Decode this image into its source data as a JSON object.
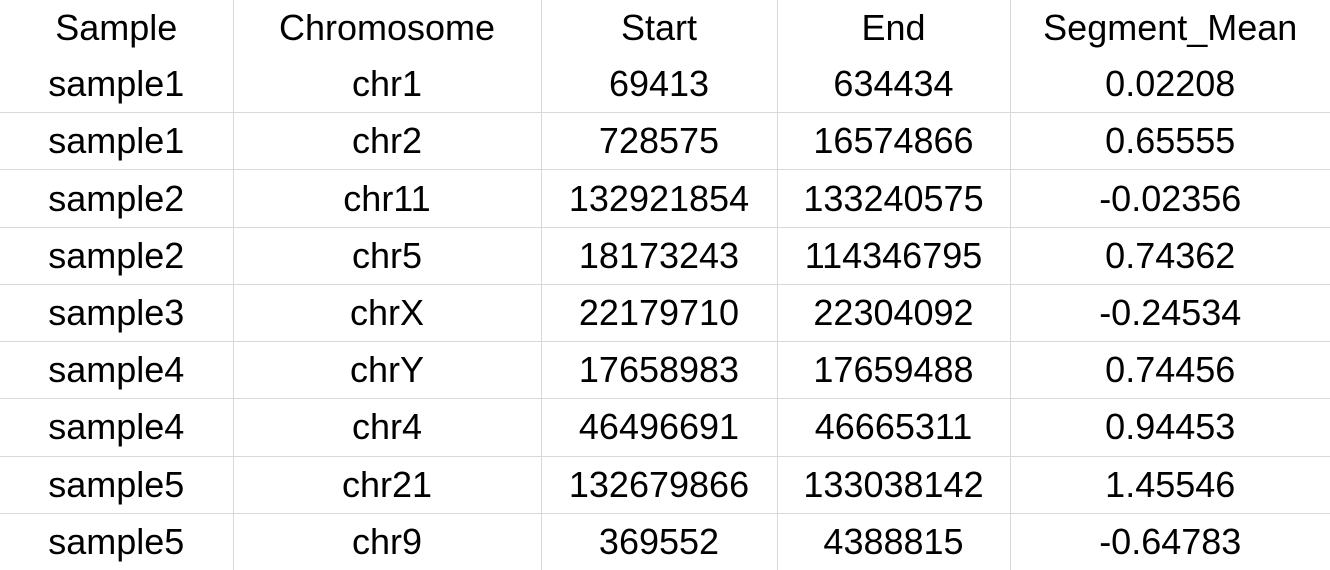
{
  "table": {
    "headers": [
      "Sample",
      "Chromosome",
      "Start",
      "End",
      "Segment_Mean"
    ],
    "rows": [
      [
        "sample1",
        "chr1",
        "69413",
        "634434",
        "0.02208"
      ],
      [
        "sample1",
        "chr2",
        "728575",
        "16574866",
        "0.65555"
      ],
      [
        "sample2",
        "chr11",
        "132921854",
        "133240575",
        "-0.02356"
      ],
      [
        "sample2",
        "chr5",
        "18173243",
        "114346795",
        "0.74362"
      ],
      [
        "sample3",
        "chrX",
        "22179710",
        "22304092",
        "-0.24534"
      ],
      [
        "sample4",
        "chrY",
        "17658983",
        "17659488",
        "0.74456"
      ],
      [
        "sample4",
        "chr4",
        "46496691",
        "46665311",
        "0.94453"
      ],
      [
        "sample5",
        "chr21",
        "132679866",
        "133038142",
        "1.45546"
      ],
      [
        "sample5",
        "chr9",
        "369552",
        "4388815",
        "-0.64783"
      ]
    ]
  }
}
